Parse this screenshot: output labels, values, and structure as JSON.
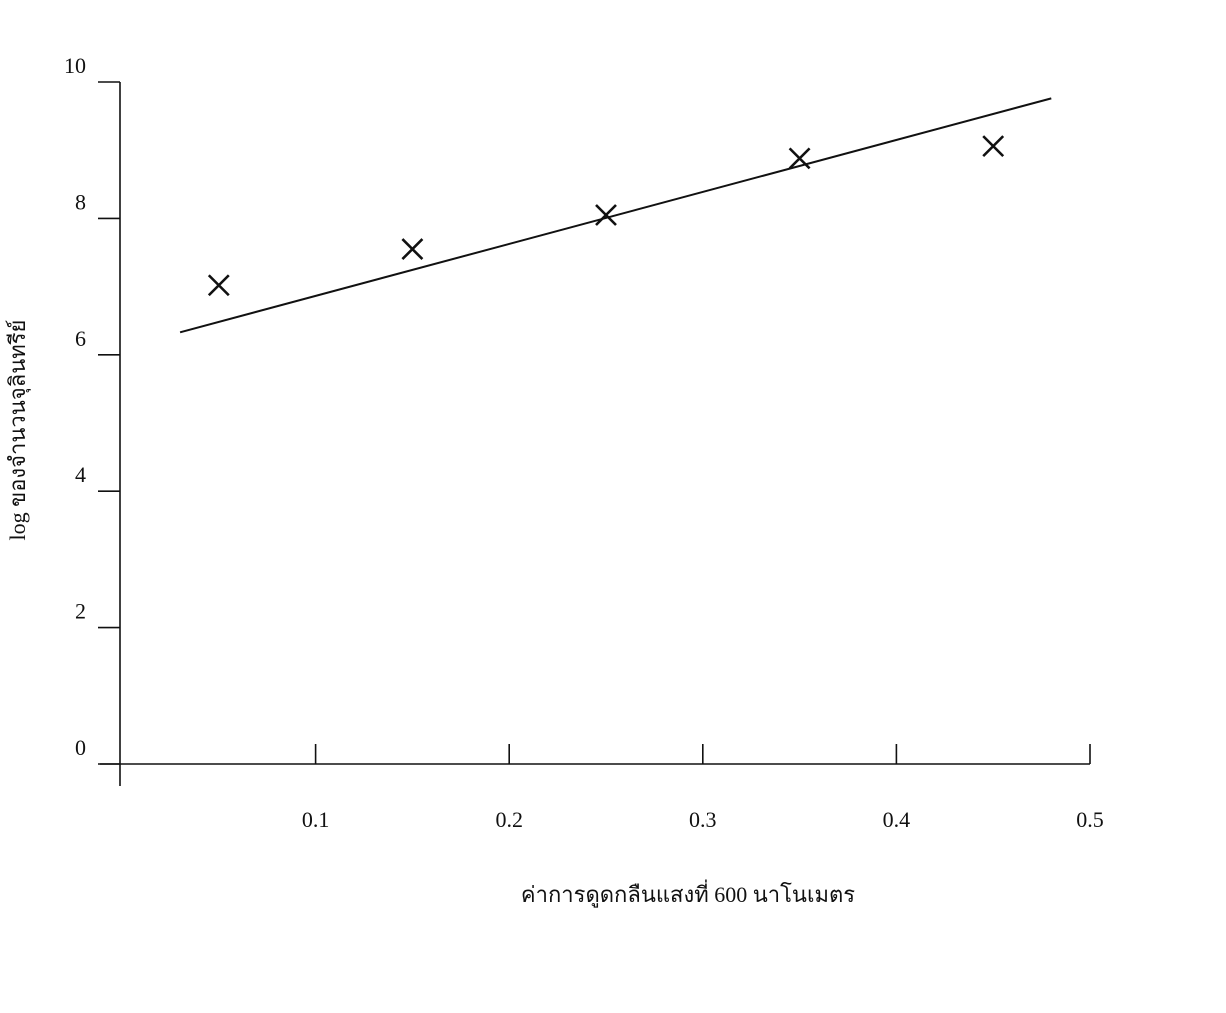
{
  "chart_data": {
    "type": "scatter",
    "x_label": "ค่าการดูดกลืนแสงที่ 600 นาโนเมตร",
    "y_label": "log ของจำนวนจุลินทรีย์",
    "x": [
      0.05,
      0.15,
      0.25,
      0.35,
      0.45
    ],
    "values": [
      7.02,
      7.55,
      8.05,
      8.88,
      9.06
    ],
    "marker": "x",
    "color": "#111111",
    "fit_line": {
      "x": [
        0.03,
        0.48
      ],
      "values": [
        6.33,
        9.76
      ],
      "color": "#111111"
    },
    "xlim": [
      0,
      0.5
    ],
    "xticks": [
      0.1,
      0.2,
      0.3,
      0.4,
      0.5
    ],
    "ylim": [
      0,
      10
    ],
    "yticks": [
      0,
      2,
      4,
      6,
      8,
      10
    ],
    "grid": false
  }
}
